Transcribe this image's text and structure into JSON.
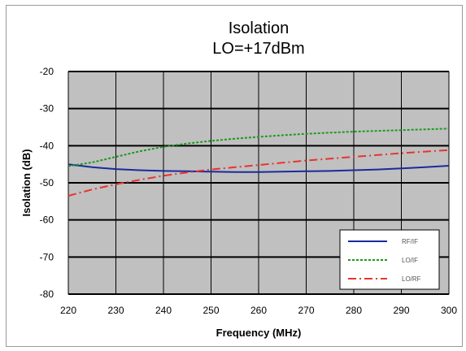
{
  "chart_data": {
    "type": "line",
    "title": "Isolation",
    "subtitle": "LO=+17dBm",
    "xlabel": "Frequency (MHz)",
    "ylabel": "Isolation (dB)",
    "xlim": [
      220,
      300
    ],
    "ylim": [
      -80,
      -20
    ],
    "xticks": [
      220,
      230,
      240,
      250,
      260,
      270,
      280,
      290,
      300
    ],
    "yticks": [
      -20,
      -30,
      -40,
      -50,
      -60,
      -70,
      -80
    ],
    "grid": true,
    "legend_position": "bottom-right",
    "colors": {
      "plot_bg": "#c0c0c0",
      "grid": "#000000"
    },
    "series": [
      {
        "name": "RF/IF",
        "color": "#1a2a9c",
        "dash": "solid",
        "x": [
          220,
          225,
          230,
          235,
          240,
          245,
          250,
          255,
          260,
          265,
          270,
          275,
          280,
          285,
          290,
          295,
          300
        ],
        "y": [
          -45.0,
          -45.8,
          -46.3,
          -46.6,
          -46.8,
          -46.9,
          -47.0,
          -47.1,
          -47.1,
          -47.0,
          -46.9,
          -46.8,
          -46.6,
          -46.4,
          -46.1,
          -45.8,
          -45.4
        ]
      },
      {
        "name": "LO/IF",
        "color": "#1d9a1d",
        "dash": "dotted",
        "x": [
          220,
          225,
          230,
          235,
          240,
          245,
          250,
          255,
          260,
          265,
          270,
          275,
          280,
          285,
          290,
          295,
          300
        ],
        "y": [
          -45.5,
          -44.5,
          -43.0,
          -41.5,
          -40.3,
          -39.4,
          -38.7,
          -38.1,
          -37.6,
          -37.2,
          -36.8,
          -36.5,
          -36.2,
          -36.0,
          -35.8,
          -35.6,
          -35.4
        ]
      },
      {
        "name": "LO/RF",
        "color": "#e8342e",
        "dash": "dashdot",
        "x": [
          220,
          225,
          230,
          235,
          240,
          245,
          250,
          255,
          260,
          265,
          270,
          275,
          280,
          285,
          290,
          295,
          300
        ],
        "y": [
          -53.5,
          -51.8,
          -50.4,
          -49.2,
          -48.1,
          -47.2,
          -46.4,
          -45.8,
          -45.2,
          -44.6,
          -44.0,
          -43.5,
          -43.0,
          -42.5,
          -42.0,
          -41.6,
          -41.2
        ]
      }
    ]
  }
}
